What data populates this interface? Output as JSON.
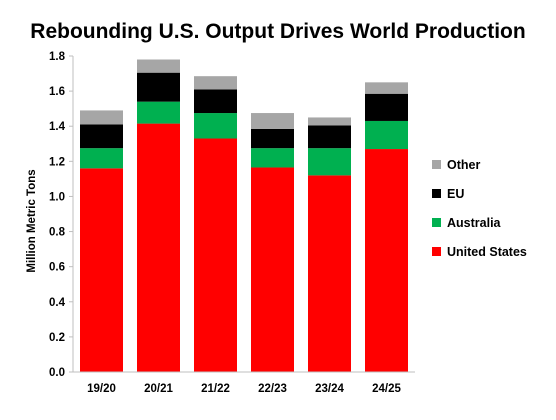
{
  "chart_data": {
    "type": "bar",
    "stacked": true,
    "title": "Rebounding U.S. Output Drives World Production",
    "ylabel": "Million Metric Tons",
    "xlabel": "",
    "categories": [
      "19/20",
      "20/21",
      "21/22",
      "22/23",
      "23/24",
      "24/25"
    ],
    "ylim": [
      0,
      1.8
    ],
    "yticks": [
      "0.0",
      "0.2",
      "0.4",
      "0.6",
      "0.8",
      "1.0",
      "1.2",
      "1.4",
      "1.6",
      "1.8"
    ],
    "grid": false,
    "legend_position": "right",
    "series": [
      {
        "name": "United States",
        "color": "#ff0000",
        "values": [
          1.16,
          1.415,
          1.33,
          1.165,
          1.12,
          1.27
        ]
      },
      {
        "name": "Australia",
        "color": "#00b050",
        "values": [
          0.115,
          0.125,
          0.145,
          0.11,
          0.155,
          0.16
        ]
      },
      {
        "name": "EU",
        "color": "#000000",
        "values": [
          0.135,
          0.165,
          0.135,
          0.11,
          0.13,
          0.155
        ]
      },
      {
        "name": "Other",
        "color": "#a6a6a6",
        "values": [
          0.08,
          0.075,
          0.075,
          0.09,
          0.045,
          0.065
        ]
      }
    ]
  }
}
